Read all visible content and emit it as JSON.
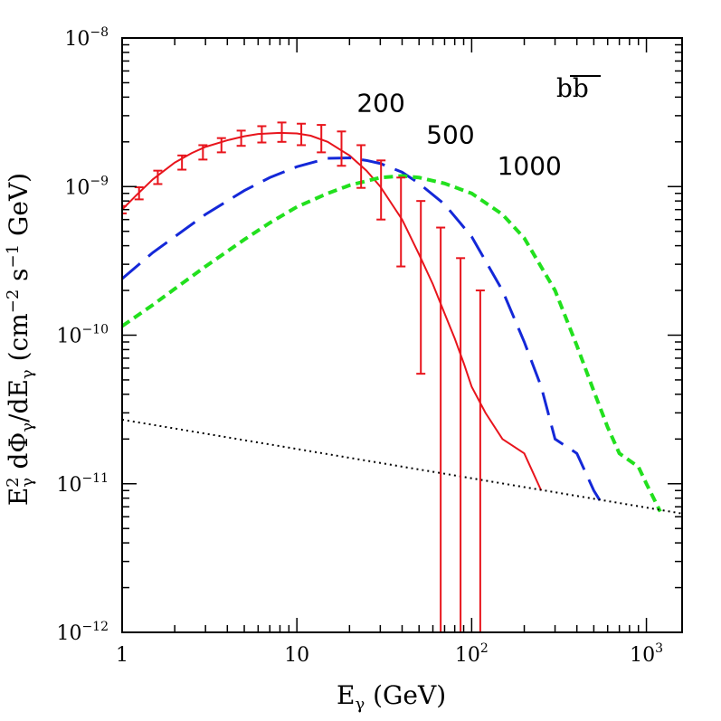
{
  "chart_data": {
    "type": "line",
    "xscale": "log",
    "yscale": "log",
    "xlim": [
      1,
      1600
    ],
    "ylim": [
      1e-12,
      1e-08
    ],
    "xlabel_main": "E",
    "xlabel_sub": "γ",
    "xlabel_unit": " (GeV)",
    "ylabel_parts": [
      "E",
      "γ",
      "2",
      " dΦ",
      "γ",
      "/dE",
      "γ",
      " (cm",
      "−2",
      " s",
      "−1",
      " GeV)"
    ],
    "channel_label": "bb",
    "x_ticks": [
      {
        "value": 1,
        "base": "1",
        "exp": ""
      },
      {
        "value": 10,
        "base": "10",
        "exp": ""
      },
      {
        "value": 100,
        "base": "10",
        "exp": "2"
      },
      {
        "value": 1000,
        "base": "10",
        "exp": "3"
      }
    ],
    "y_ticks": [
      {
        "value": 1e-12,
        "base": "10",
        "exp": "−12"
      },
      {
        "value": 1e-11,
        "base": "10",
        "exp": "−11"
      },
      {
        "value": 1e-10,
        "base": "10",
        "exp": "−10"
      },
      {
        "value": 1e-09,
        "base": "10",
        "exp": "−9"
      },
      {
        "value": 1e-08,
        "base": "10",
        "exp": "−8"
      }
    ],
    "series": [
      {
        "name": "200",
        "color": "#e8141c",
        "dash": "solid",
        "x": [
          1,
          1.2,
          1.5,
          2,
          2.5,
          3,
          4,
          5,
          6,
          8,
          10,
          12,
          15,
          20,
          25,
          30,
          40,
          50,
          60,
          70,
          80,
          90,
          100,
          120,
          150,
          200,
          250
        ],
        "y": [
          7e-10,
          8.7e-10,
          1.12e-09,
          1.45e-09,
          1.68e-09,
          1.85e-09,
          2.05e-09,
          2.18e-09,
          2.26e-09,
          2.3e-09,
          2.28e-09,
          2.2e-09,
          2e-09,
          1.62e-09,
          1.28e-09,
          1e-09,
          6e-10,
          3.5e-10,
          2.2e-10,
          1.4e-10,
          9.5e-11,
          6.5e-11,
          4.5e-11,
          3e-11,
          2e-11,
          1.6e-11,
          9e-12
        ],
        "label_pos": [
          22,
          3.2e-09
        ]
      },
      {
        "name": "500",
        "color": "#1428d8",
        "dash": "longdash",
        "x": [
          1,
          1.5,
          2,
          3,
          5,
          7,
          10,
          15,
          20,
          25,
          30,
          40,
          50,
          70,
          100,
          150,
          200,
          250,
          300,
          400,
          500,
          550
        ],
        "y": [
          2.4e-10,
          3.6e-10,
          4.6e-10,
          6.5e-10,
          9.4e-10,
          1.15e-09,
          1.36e-09,
          1.55e-09,
          1.56e-09,
          1.5e-09,
          1.43e-09,
          1.25e-09,
          1.05e-09,
          7.6e-10,
          4.6e-10,
          2e-10,
          9e-11,
          4.5e-11,
          2e-11,
          1.6e-11,
          9e-12,
          7.5e-12
        ],
        "label_pos": [
          55,
          1.95e-09
        ]
      },
      {
        "name": "1000",
        "color": "#22e01e",
        "dash": "shortdash",
        "x": [
          1,
          1.5,
          2,
          3,
          5,
          7,
          10,
          15,
          20,
          30,
          40,
          50,
          70,
          100,
          150,
          200,
          300,
          400,
          500,
          600,
          700,
          900,
          1000,
          1200
        ],
        "y": [
          1.15e-10,
          1.6e-10,
          2.05e-10,
          2.9e-10,
          4.4e-10,
          5.7e-10,
          7.3e-10,
          9e-10,
          1.02e-09,
          1.15e-09,
          1.18e-09,
          1.15e-09,
          1.05e-09,
          9e-10,
          6.5e-10,
          4.5e-10,
          2e-10,
          8.5e-11,
          4.2e-11,
          2.4e-11,
          1.6e-11,
          1.3e-11,
          1e-11,
          6.5e-12
        ],
        "label_pos": [
          140,
          1.2e-09
        ]
      },
      {
        "name": "",
        "color": "#000000",
        "dash": "dotted",
        "x": [
          1,
          1600
        ],
        "y": [
          2.7e-11,
          6.3e-12
        ]
      }
    ],
    "error_bars": {
      "color": "#e8141c",
      "points": [
        {
          "x": 1,
          "y": 7e-10,
          "lo": 6.6e-10,
          "hi": 7.4e-10
        },
        {
          "x": 1.25,
          "y": 9e-10,
          "lo": 8.2e-10,
          "hi": 9.9e-10
        },
        {
          "x": 1.6,
          "y": 1.15e-09,
          "lo": 1.04e-09,
          "hi": 1.28e-09
        },
        {
          "x": 2.2,
          "y": 1.45e-09,
          "lo": 1.3e-09,
          "hi": 1.62e-09
        },
        {
          "x": 2.9,
          "y": 1.7e-09,
          "lo": 1.52e-09,
          "hi": 1.9e-09
        },
        {
          "x": 3.7,
          "y": 1.9e-09,
          "lo": 1.7e-09,
          "hi": 2.12e-09
        },
        {
          "x": 4.8,
          "y": 2.1e-09,
          "lo": 1.88e-09,
          "hi": 2.38e-09
        },
        {
          "x": 6.3,
          "y": 2.25e-09,
          "lo": 1.98e-09,
          "hi": 2.55e-09
        },
        {
          "x": 8.2,
          "y": 2.3e-09,
          "lo": 2e-09,
          "hi": 2.7e-09
        },
        {
          "x": 10.6,
          "y": 2.25e-09,
          "lo": 1.9e-09,
          "hi": 2.65e-09
        },
        {
          "x": 13.8,
          "y": 2.1e-09,
          "lo": 1.7e-09,
          "hi": 2.6e-09
        },
        {
          "x": 18,
          "y": 1.8e-09,
          "lo": 1.38e-09,
          "hi": 2.35e-09
        },
        {
          "x": 23.3,
          "y": 1.4e-09,
          "lo": 9.8e-10,
          "hi": 1.9e-09
        },
        {
          "x": 30.3,
          "y": 1.05e-09,
          "lo": 6e-10,
          "hi": 1.5e-09
        },
        {
          "x": 39.4,
          "y": 7e-10,
          "lo": 2.9e-10,
          "hi": 1.15e-09
        },
        {
          "x": 51.2,
          "y": 3.8e-10,
          "lo": 5.5e-11,
          "hi": 8e-10
        },
        {
          "x": 66.5,
          "y": 2.2e-10,
          "lo": 1e-12,
          "hi": 5.3e-10
        },
        {
          "x": 86.4,
          "y": 1e-10,
          "lo": 1e-12,
          "hi": 3.3e-10
        },
        {
          "x": 112,
          "y": 3.9e-11,
          "lo": 1e-12,
          "hi": 2e-10
        }
      ]
    }
  }
}
